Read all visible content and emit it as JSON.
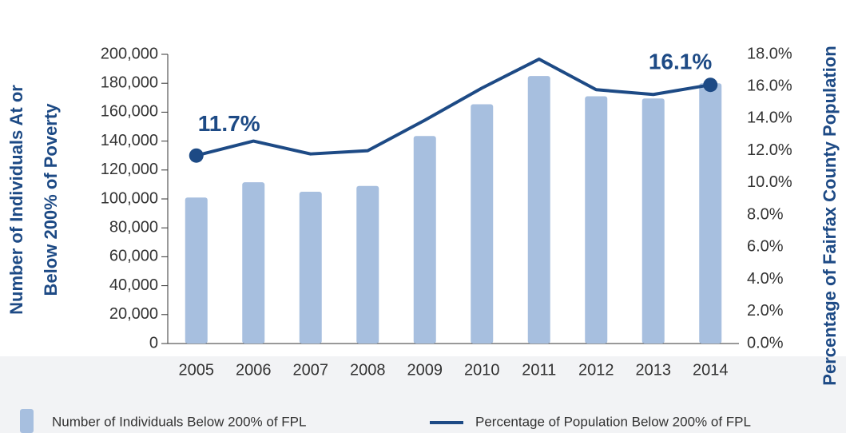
{
  "chart_data": {
    "type": "bar-line",
    "categories": [
      "2005",
      "2006",
      "2007",
      "2008",
      "2009",
      "2010",
      "2011",
      "2012",
      "2013",
      "2014"
    ],
    "series": [
      {
        "name": "Number of Individuals Below 200% of FPL",
        "color": "#a7bfdf",
        "type": "bar",
        "values": [
          101000,
          111500,
          105000,
          109000,
          143500,
          165500,
          185000,
          171000,
          169500,
          180000
        ]
      },
      {
        "name": "Percentage of Population Below 200% of FPL",
        "color": "#1d4a85",
        "type": "line",
        "axis": "y2",
        "values": [
          11.7,
          12.6,
          11.8,
          12.0,
          13.9,
          15.9,
          17.7,
          15.8,
          15.5,
          16.1
        ],
        "value_labels": [
          "11.7%",
          null,
          null,
          null,
          null,
          null,
          null,
          null,
          null,
          "16.1%"
        ]
      }
    ],
    "ylabel": [
      "Number of Individuals At or",
      "Below 200% of Poverty"
    ],
    "y2label": "Percentage of Fairfax County Population",
    "ylim": [
      0,
      200000
    ],
    "yticks": [
      {
        "value": 0,
        "label": "0"
      },
      {
        "value": 20000,
        "label": "20,000"
      },
      {
        "value": 40000,
        "label": "40,000"
      },
      {
        "value": 60000,
        "label": "60,000"
      },
      {
        "value": 80000,
        "label": "80,000"
      },
      {
        "value": 100000,
        "label": "100,000"
      },
      {
        "value": 120000,
        "label": "120,000"
      },
      {
        "value": 140000,
        "label": "140,000"
      },
      {
        "value": 160000,
        "label": "160,000"
      },
      {
        "value": 180000,
        "label": "180,000"
      },
      {
        "value": 200000,
        "label": "200,000"
      }
    ],
    "y2lim": [
      0,
      18
    ],
    "y2ticks": [
      {
        "value": 0,
        "label": "0.0%"
      },
      {
        "value": 2,
        "label": "2.0%"
      },
      {
        "value": 4,
        "label": "4.0%"
      },
      {
        "value": 6,
        "label": "6.0%"
      },
      {
        "value": 8,
        "label": "8.0%"
      },
      {
        "value": 10,
        "label": "10.0%"
      },
      {
        "value": 12,
        "label": "12.0%"
      },
      {
        "value": 14,
        "label": "14.0%"
      },
      {
        "value": 16,
        "label": "16.0%"
      },
      {
        "value": 18,
        "label": "18.0%"
      }
    ],
    "legend": "bottom",
    "grid": false
  }
}
